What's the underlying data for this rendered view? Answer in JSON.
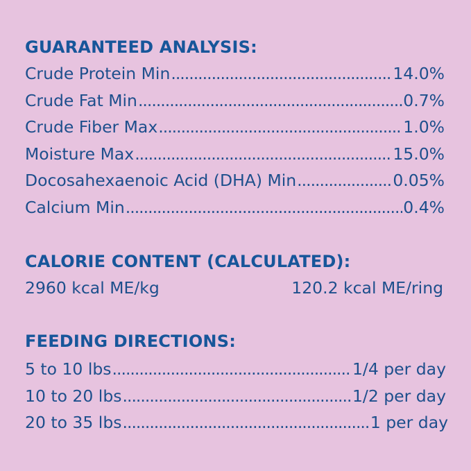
{
  "guaranteed_analysis": {
    "heading": "GUARANTEED ANALYSIS:",
    "rows": [
      {
        "label": "Crude Protein Min",
        "value": "14.0%"
      },
      {
        "label": "Crude Fat Min",
        "value": "0.7%"
      },
      {
        "label": "Crude Fiber Max",
        "value": "1.0%"
      },
      {
        "label": "Moisture Max",
        "value": "15.0%"
      },
      {
        "label": "Docosahexaenoic Acid (DHA) Min",
        "value": "0.05%"
      },
      {
        "label": "Calcium Min",
        "value": "0.4%"
      }
    ]
  },
  "calorie_content": {
    "heading": "CALORIE CONTENT (CALCULATED):",
    "per_kg": "2960 kcal ME/kg",
    "per_ring": "120.2 kcal ME/ring"
  },
  "feeding_directions": {
    "heading": "FEEDING DIRECTIONS:",
    "rows": [
      {
        "label": "5 to 10 lbs",
        "value": "1/4 per day"
      },
      {
        "label": "10 to 20 lbs",
        "value": "1/2 per day"
      },
      {
        "label": "20 to 35 lbs",
        "value": "1 per day"
      }
    ]
  },
  "colors": {
    "background": "#e7c3df",
    "heading": "#17569a",
    "text": "#1d4f8c"
  }
}
